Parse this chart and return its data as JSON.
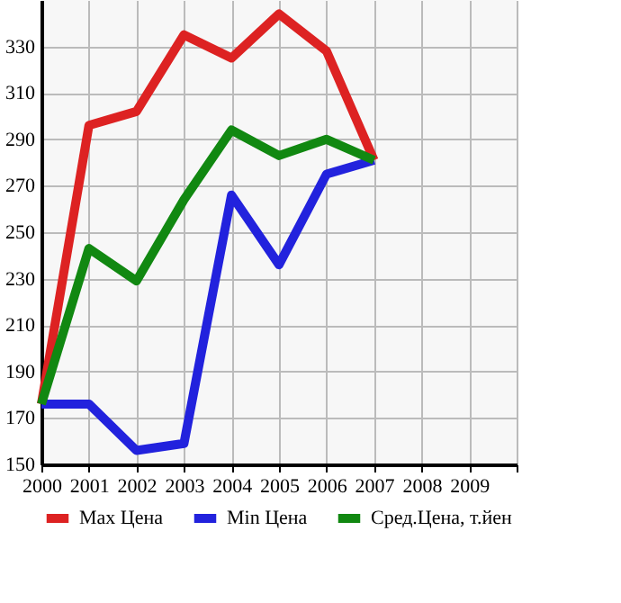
{
  "chart_data": {
    "type": "line",
    "x": [
      2000,
      2001,
      2002,
      2003,
      2004,
      2005,
      2006,
      2007
    ],
    "series": [
      {
        "name": "Max Цена",
        "color": "#dd2222",
        "values": [
          176,
          296,
          302,
          335,
          325,
          344,
          328,
          281
        ]
      },
      {
        "name": "Min Цена",
        "color": "#2222dd",
        "values": [
          176,
          176,
          156,
          159,
          266,
          236,
          275,
          281
        ]
      },
      {
        "name": "Сред.Цена, т.йен",
        "color": "#118811",
        "values": [
          176,
          243,
          229,
          264,
          294,
          283,
          290,
          281
        ]
      }
    ],
    "xlim": [
      2000,
      2010
    ],
    "xticks": [
      2000,
      2001,
      2002,
      2003,
      2004,
      2005,
      2006,
      2007,
      2008,
      2009,
      {
        "value": 2010,
        "label": null
      }
    ],
    "ylim": [
      150,
      350
    ],
    "yticks": [
      150,
      170,
      190,
      210,
      230,
      250,
      270,
      290,
      310,
      330
    ],
    "grid": true,
    "legend": "bottom",
    "marker": "none",
    "line_style": "solid"
  }
}
